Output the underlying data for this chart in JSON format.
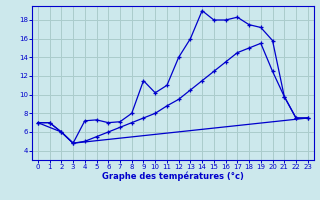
{
  "xlabel": "Graphe des températures (°c)",
  "bg_color": "#cce8ec",
  "grid_color": "#aacccc",
  "line_color": "#0000cc",
  "xlim": [
    -0.5,
    23.5
  ],
  "ylim": [
    3.0,
    19.5
  ],
  "xticks": [
    0,
    1,
    2,
    3,
    4,
    5,
    6,
    7,
    8,
    9,
    10,
    11,
    12,
    13,
    14,
    15,
    16,
    17,
    18,
    19,
    20,
    21,
    22,
    23
  ],
  "yticks": [
    4,
    6,
    8,
    10,
    12,
    14,
    16,
    18
  ],
  "line1_x": [
    0,
    1,
    2,
    3,
    4,
    5,
    6,
    7,
    8,
    9,
    10,
    11,
    12,
    13,
    14,
    15,
    16,
    17,
    18,
    19,
    20,
    21,
    22,
    23
  ],
  "line1_y": [
    7,
    7,
    6,
    4.8,
    7.2,
    7.3,
    7.0,
    7.1,
    8.0,
    11.5,
    10.2,
    11.0,
    14.0,
    16.0,
    19.0,
    18.0,
    18.0,
    18.3,
    17.5,
    17.2,
    15.8,
    9.8,
    7.5,
    7.5
  ],
  "line2_x": [
    0,
    1,
    2,
    3,
    4,
    5,
    6,
    7,
    8,
    9,
    10,
    11,
    12,
    13,
    14,
    15,
    16,
    17,
    18,
    19,
    20,
    21,
    22,
    23
  ],
  "line2_y": [
    7.0,
    7.0,
    6.0,
    4.8,
    5.0,
    5.5,
    6.0,
    6.5,
    7.0,
    7.5,
    8.0,
    8.8,
    9.5,
    10.5,
    11.5,
    12.5,
    13.5,
    14.5,
    15.0,
    15.5,
    12.5,
    9.8,
    7.5,
    7.5
  ],
  "line3_x": [
    0,
    2,
    3,
    23
  ],
  "line3_y": [
    7.0,
    6.0,
    4.8,
    7.5
  ]
}
